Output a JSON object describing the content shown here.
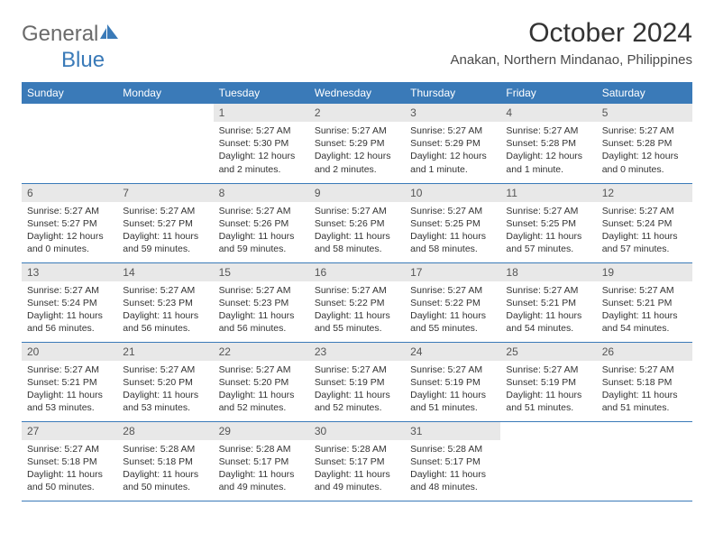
{
  "logo": {
    "text_a": "General",
    "text_b": "Blue"
  },
  "title": "October 2024",
  "location": "Anakan, Northern Mindanao, Philippines",
  "colors": {
    "header_bg": "#3a7ab8",
    "header_text": "#ffffff",
    "daynum_bg": "#e8e8e8",
    "daynum_text": "#555555",
    "border": "#3a7ab8",
    "logo_gray": "#6a6a6a",
    "logo_blue": "#3a7ab8"
  },
  "weekdays": [
    "Sunday",
    "Monday",
    "Tuesday",
    "Wednesday",
    "Thursday",
    "Friday",
    "Saturday"
  ],
  "grid": [
    [
      null,
      null,
      {
        "n": "1",
        "sunrise": "5:27 AM",
        "sunset": "5:30 PM",
        "daylight": "12 hours and 2 minutes."
      },
      {
        "n": "2",
        "sunrise": "5:27 AM",
        "sunset": "5:29 PM",
        "daylight": "12 hours and 2 minutes."
      },
      {
        "n": "3",
        "sunrise": "5:27 AM",
        "sunset": "5:29 PM",
        "daylight": "12 hours and 1 minute."
      },
      {
        "n": "4",
        "sunrise": "5:27 AM",
        "sunset": "5:28 PM",
        "daylight": "12 hours and 1 minute."
      },
      {
        "n": "5",
        "sunrise": "5:27 AM",
        "sunset": "5:28 PM",
        "daylight": "12 hours and 0 minutes."
      }
    ],
    [
      {
        "n": "6",
        "sunrise": "5:27 AM",
        "sunset": "5:27 PM",
        "daylight": "12 hours and 0 minutes."
      },
      {
        "n": "7",
        "sunrise": "5:27 AM",
        "sunset": "5:27 PM",
        "daylight": "11 hours and 59 minutes."
      },
      {
        "n": "8",
        "sunrise": "5:27 AM",
        "sunset": "5:26 PM",
        "daylight": "11 hours and 59 minutes."
      },
      {
        "n": "9",
        "sunrise": "5:27 AM",
        "sunset": "5:26 PM",
        "daylight": "11 hours and 58 minutes."
      },
      {
        "n": "10",
        "sunrise": "5:27 AM",
        "sunset": "5:25 PM",
        "daylight": "11 hours and 58 minutes."
      },
      {
        "n": "11",
        "sunrise": "5:27 AM",
        "sunset": "5:25 PM",
        "daylight": "11 hours and 57 minutes."
      },
      {
        "n": "12",
        "sunrise": "5:27 AM",
        "sunset": "5:24 PM",
        "daylight": "11 hours and 57 minutes."
      }
    ],
    [
      {
        "n": "13",
        "sunrise": "5:27 AM",
        "sunset": "5:24 PM",
        "daylight": "11 hours and 56 minutes."
      },
      {
        "n": "14",
        "sunrise": "5:27 AM",
        "sunset": "5:23 PM",
        "daylight": "11 hours and 56 minutes."
      },
      {
        "n": "15",
        "sunrise": "5:27 AM",
        "sunset": "5:23 PM",
        "daylight": "11 hours and 56 minutes."
      },
      {
        "n": "16",
        "sunrise": "5:27 AM",
        "sunset": "5:22 PM",
        "daylight": "11 hours and 55 minutes."
      },
      {
        "n": "17",
        "sunrise": "5:27 AM",
        "sunset": "5:22 PM",
        "daylight": "11 hours and 55 minutes."
      },
      {
        "n": "18",
        "sunrise": "5:27 AM",
        "sunset": "5:21 PM",
        "daylight": "11 hours and 54 minutes."
      },
      {
        "n": "19",
        "sunrise": "5:27 AM",
        "sunset": "5:21 PM",
        "daylight": "11 hours and 54 minutes."
      }
    ],
    [
      {
        "n": "20",
        "sunrise": "5:27 AM",
        "sunset": "5:21 PM",
        "daylight": "11 hours and 53 minutes."
      },
      {
        "n": "21",
        "sunrise": "5:27 AM",
        "sunset": "5:20 PM",
        "daylight": "11 hours and 53 minutes."
      },
      {
        "n": "22",
        "sunrise": "5:27 AM",
        "sunset": "5:20 PM",
        "daylight": "11 hours and 52 minutes."
      },
      {
        "n": "23",
        "sunrise": "5:27 AM",
        "sunset": "5:19 PM",
        "daylight": "11 hours and 52 minutes."
      },
      {
        "n": "24",
        "sunrise": "5:27 AM",
        "sunset": "5:19 PM",
        "daylight": "11 hours and 51 minutes."
      },
      {
        "n": "25",
        "sunrise": "5:27 AM",
        "sunset": "5:19 PM",
        "daylight": "11 hours and 51 minutes."
      },
      {
        "n": "26",
        "sunrise": "5:27 AM",
        "sunset": "5:18 PM",
        "daylight": "11 hours and 51 minutes."
      }
    ],
    [
      {
        "n": "27",
        "sunrise": "5:27 AM",
        "sunset": "5:18 PM",
        "daylight": "11 hours and 50 minutes."
      },
      {
        "n": "28",
        "sunrise": "5:28 AM",
        "sunset": "5:18 PM",
        "daylight": "11 hours and 50 minutes."
      },
      {
        "n": "29",
        "sunrise": "5:28 AM",
        "sunset": "5:17 PM",
        "daylight": "11 hours and 49 minutes."
      },
      {
        "n": "30",
        "sunrise": "5:28 AM",
        "sunset": "5:17 PM",
        "daylight": "11 hours and 49 minutes."
      },
      {
        "n": "31",
        "sunrise": "5:28 AM",
        "sunset": "5:17 PM",
        "daylight": "11 hours and 48 minutes."
      },
      null,
      null
    ]
  ]
}
